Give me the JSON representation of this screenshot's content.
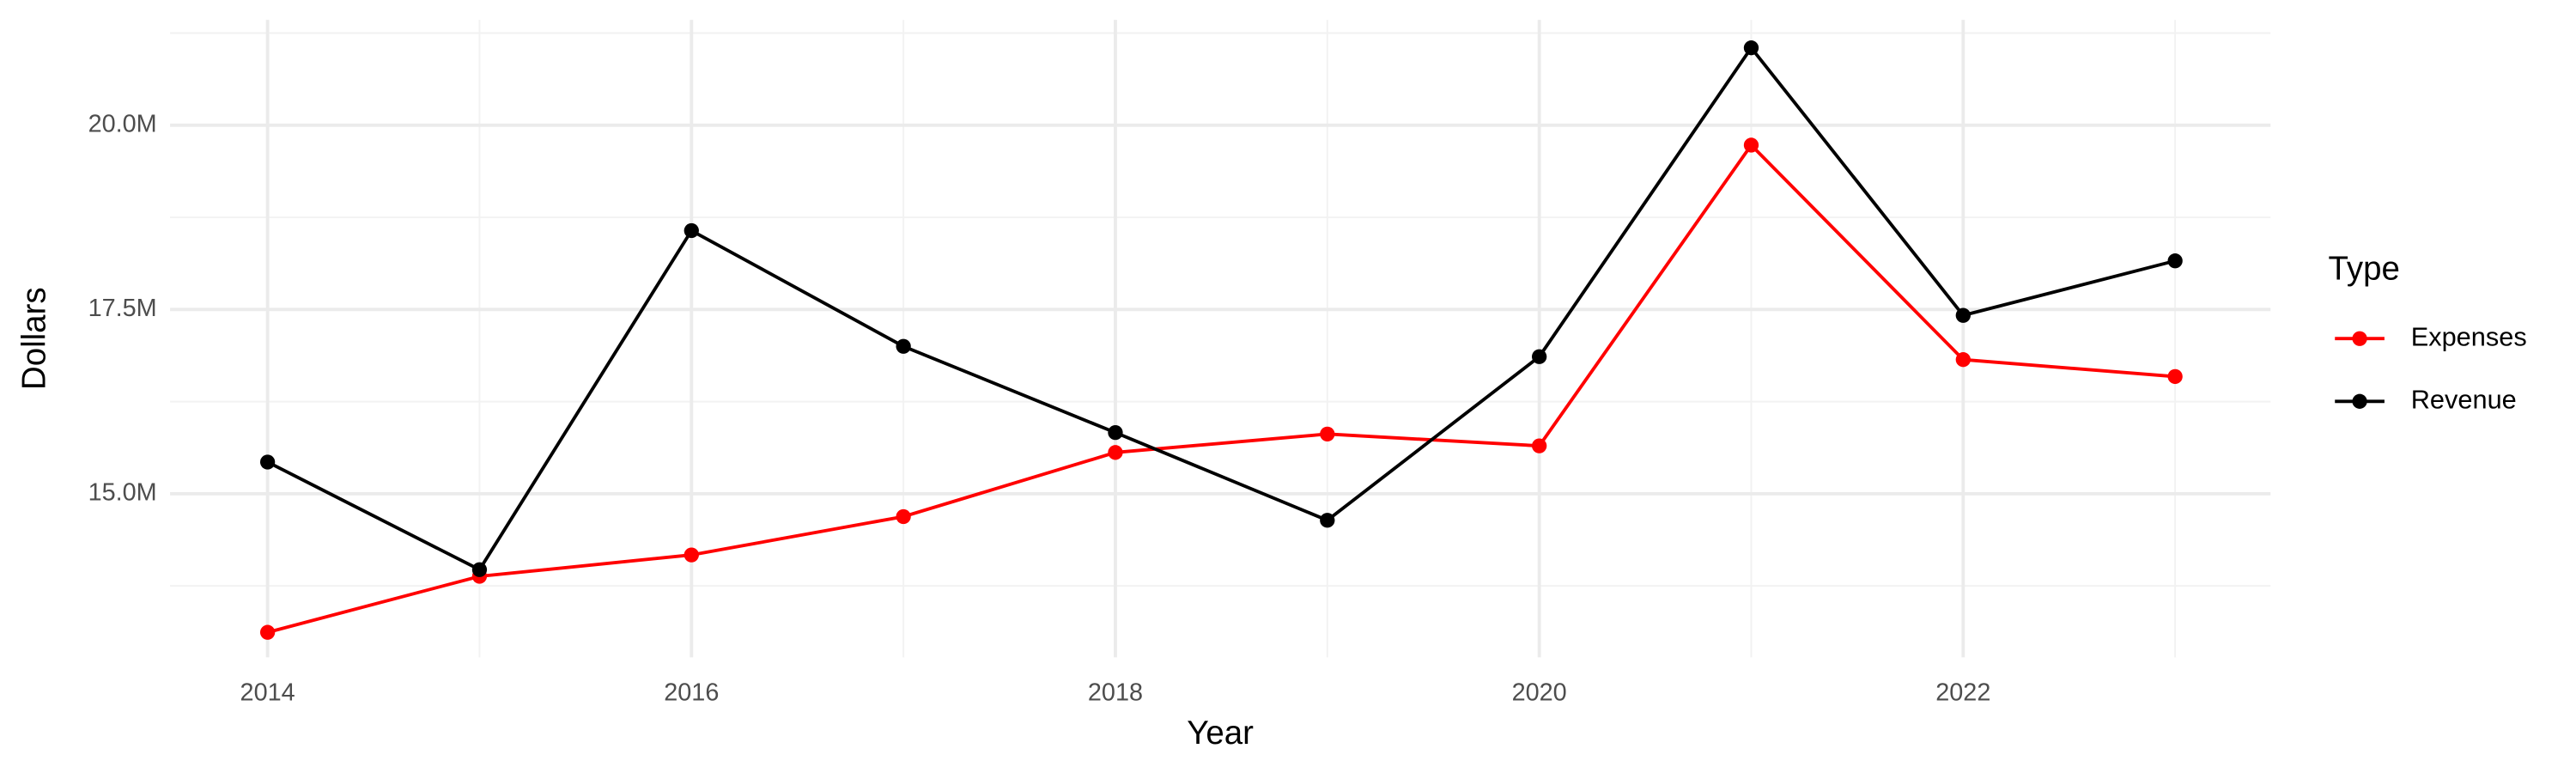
{
  "chart_data": {
    "type": "line",
    "x_label": "Year",
    "y_label": "Dollars",
    "legend_title": "Type",
    "legend_position": "right",
    "grid": true,
    "x": [
      2014,
      2015,
      2016,
      2017,
      2018,
      2019,
      2020,
      2021,
      2022,
      2023
    ],
    "series": [
      {
        "name": "Expenses",
        "color": "#ff0000",
        "values": [
          13120000,
          13880000,
          14170000,
          14690000,
          15560000,
          15810000,
          15650000,
          19730000,
          16820000,
          16590000
        ]
      },
      {
        "name": "Revenue",
        "color": "#000000",
        "values": [
          15430000,
          13970000,
          18570000,
          17000000,
          15830000,
          14640000,
          16860000,
          21050000,
          17420000,
          18160000
        ]
      }
    ],
    "xlim": [
      2013.54,
      2023.45
    ],
    "xticks": [
      2014,
      2016,
      2018,
      2020,
      2022
    ],
    "ylim": [
      12780000,
      21430000
    ],
    "yticks": [
      {
        "value": 15000000,
        "label": "15.0M"
      },
      {
        "value": 17500000,
        "label": "17.5M"
      },
      {
        "value": 20000000,
        "label": "20.0M"
      }
    ]
  }
}
